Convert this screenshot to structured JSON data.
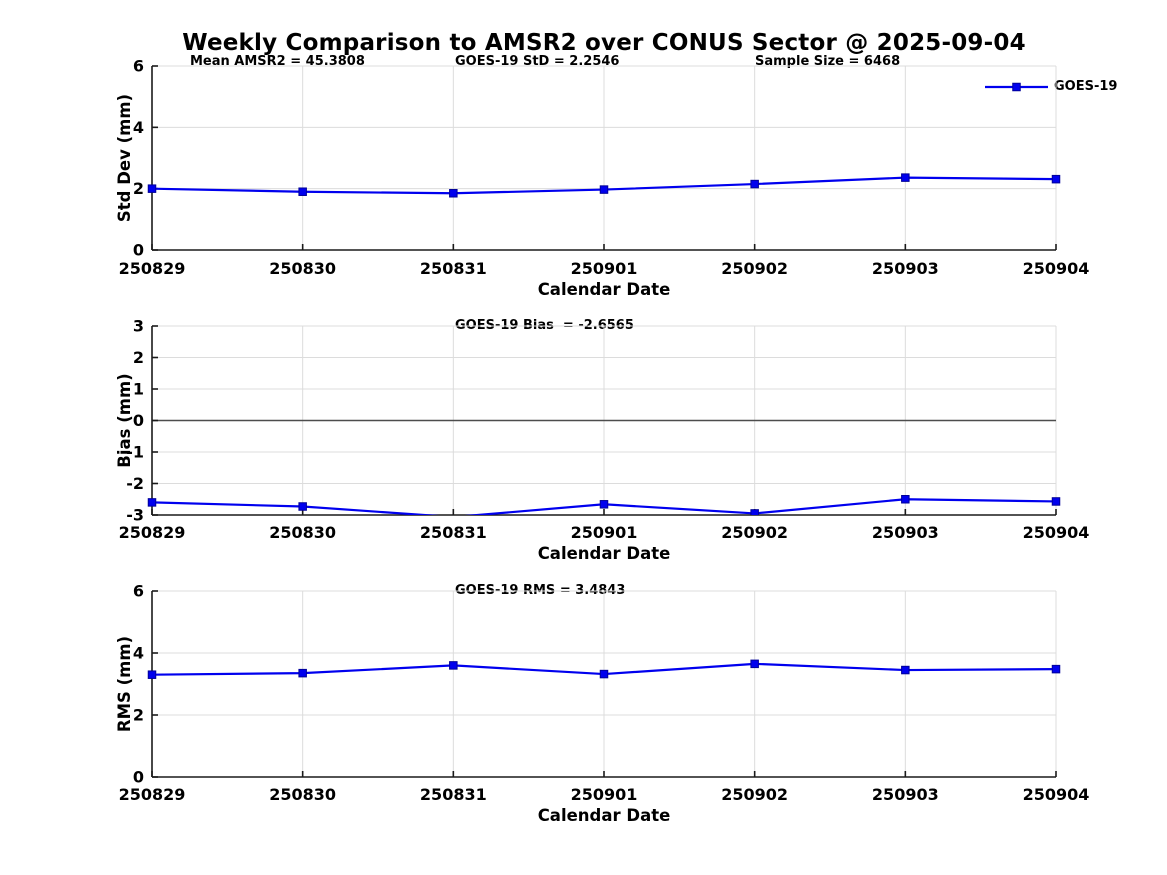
{
  "title": "Weekly Comparison to AMSR2 over CONUS Sector @ 2025-09-04",
  "legend": {
    "label": "GOES-19"
  },
  "colors": {
    "line": "#0000ee",
    "marker_edge": "#000099",
    "grid": "#dcdcdc",
    "zero_line": "#4d4d4d",
    "axis": "#1a1a1a",
    "text": "#000000",
    "background": "#ffffff"
  },
  "chart_data": [
    {
      "type": "line",
      "panel": "std-dev",
      "annotations": [
        "Mean AMSR2 = 45.3808",
        "GOES-19 StD = 2.2546",
        "Sample Size = 6468"
      ],
      "categories": [
        "250829",
        "250830",
        "250831",
        "250901",
        "250902",
        "250903",
        "250904"
      ],
      "xlabel": "Calendar Date",
      "ylabel": "Std Dev (mm)",
      "ylim": [
        0,
        6
      ],
      "yticks": [
        0,
        2,
        4,
        6
      ],
      "grid": true,
      "legend_position": "top-right",
      "series": [
        {
          "name": "GOES-19",
          "values": [
            2.0,
            1.9,
            1.85,
            1.97,
            2.15,
            2.36,
            2.31
          ]
        }
      ]
    },
    {
      "type": "line",
      "panel": "bias",
      "annotations": [
        "GOES-19 Bias  = -2.6565"
      ],
      "categories": [
        "250829",
        "250830",
        "250831",
        "250901",
        "250902",
        "250903",
        "250904"
      ],
      "xlabel": "Calendar Date",
      "ylabel": "Bias (mm)",
      "ylim": [
        -3,
        3
      ],
      "yticks": [
        -3,
        -2,
        -1,
        0,
        1,
        2,
        3
      ],
      "grid": true,
      "zero_line": true,
      "series": [
        {
          "name": "GOES-19",
          "values": [
            -2.6,
            -2.73,
            -3.065,
            -2.66,
            -2.95,
            -2.5,
            -2.57
          ]
        }
      ]
    },
    {
      "type": "line",
      "panel": "rms",
      "annotations": [
        "GOES-19 RMS = 3.4843"
      ],
      "categories": [
        "250829",
        "250830",
        "250831",
        "250901",
        "250902",
        "250903",
        "250904"
      ],
      "xlabel": "Calendar Date",
      "ylabel": "RMS (mm)",
      "ylim": [
        0,
        6
      ],
      "yticks": [
        0,
        2,
        4,
        6
      ],
      "grid": true,
      "series": [
        {
          "name": "GOES-19",
          "values": [
            3.3,
            3.35,
            3.6,
            3.32,
            3.65,
            3.45,
            3.48
          ]
        }
      ]
    }
  ]
}
